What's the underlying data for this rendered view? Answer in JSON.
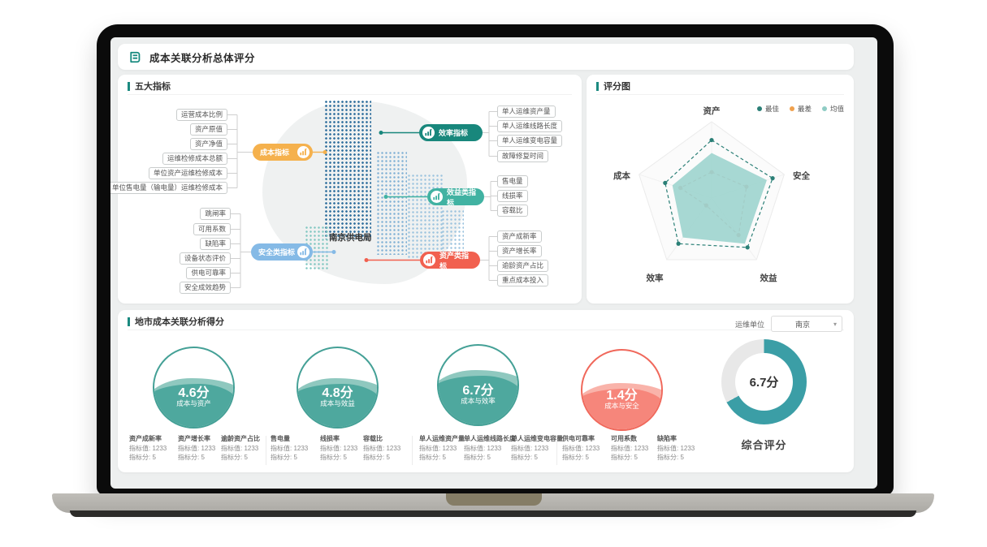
{
  "app": {
    "title": "成本关联分析总体评分"
  },
  "mindmap": {
    "section_title": "五大指标",
    "center_label": "南京供电局",
    "branches": {
      "cost": {
        "label": "成本指标",
        "color": "#F5B14D",
        "items": [
          "运营成本比例",
          "资产原值",
          "资产净值",
          "运维检修成本总额",
          "单位资产运维检修成本",
          "单位售电量（输电量）运维检修成本"
        ]
      },
      "safety": {
        "label": "安全类指标",
        "color": "#85BAE6",
        "items": [
          "跳闸率",
          "可用系数",
          "缺陷率",
          "设备状态评价",
          "供电可靠率",
          "安全成效趋势"
        ]
      },
      "efficiency": {
        "label": "效率指标",
        "color": "#18877C",
        "items": [
          "单人运维资产量",
          "单人运维线路长度",
          "单人运维变电容量",
          "故障修复时间"
        ]
      },
      "benefit": {
        "label": "效益类指标",
        "color": "#41B2A2",
        "items": [
          "售电量",
          "线损率",
          "容载比"
        ]
      },
      "asset": {
        "label": "资产类指标",
        "color": "#F1604F",
        "items": [
          "资产成新率",
          "资产增长率",
          "逾龄资产占比",
          "重点成本投入"
        ]
      }
    }
  },
  "score_chart": {
    "section_title": "评分图",
    "legend": [
      {
        "label": "最佳",
        "color": "#2a7f76"
      },
      {
        "label": "最差",
        "color": "#f0a14e"
      },
      {
        "label": "均值",
        "color": "#8fccc4"
      }
    ]
  },
  "chart_data": {
    "type": "radar",
    "title": "评分图",
    "categories": [
      "资产",
      "安全",
      "效益",
      "效率",
      "成本"
    ],
    "max": 10,
    "series": [
      {
        "name": "最佳",
        "values": [
          7.6,
          8.4,
          8.0,
          7.4,
          6.4
        ],
        "color": "#2a7f76",
        "style": "dashed-line-with-dots"
      },
      {
        "name": "最差",
        "values": [
          3.4,
          4.8,
          6.0,
          1.2,
          4.3
        ],
        "color": "#bc6a5e",
        "style": "dashed-line-with-dots"
      },
      {
        "name": "均值",
        "values": [
          5.9,
          7.6,
          7.4,
          6.4,
          5.4
        ],
        "color": "#a0d5cf",
        "style": "filled-area"
      }
    ],
    "legend_position": "top-right",
    "grid": "pentagon-outline"
  },
  "city": {
    "section_title": "地市成本关联分析得分",
    "unit_label": "运维单位",
    "unit_value": "南京",
    "gauges": [
      {
        "score": "4.6分",
        "label": "成本与资产",
        "theme": "teal",
        "fill_percent": 55
      },
      {
        "score": "4.8分",
        "label": "成本与效益",
        "theme": "teal",
        "fill_percent": 55
      },
      {
        "score": "6.7分",
        "label": "成本与效率",
        "theme": "teal",
        "fill_percent": 62
      },
      {
        "score": "1.4分",
        "label": "成本与安全",
        "theme": "red",
        "fill_percent": 52
      }
    ],
    "overall": {
      "score": "6.7分",
      "label": "综合评分",
      "percent": 67,
      "color": "#3B9EA6",
      "track_color": "#e8e8e8"
    },
    "metrics": [
      {
        "name": "资产成新率",
        "value": "指标值: 1233",
        "score": "指标分: 5"
      },
      {
        "name": "资产增长率",
        "value": "指标值: 1233",
        "score": "指标分: 5"
      },
      {
        "name": "逾龄资产占比",
        "value": "指标值: 1233",
        "score": "指标分: 5"
      },
      {
        "name": "售电量",
        "value": "指标值: 1233",
        "score": "指标分: 5"
      },
      {
        "name": "线损率",
        "value": "指标值: 1233",
        "score": "指标分: 5"
      },
      {
        "name": "容载比",
        "value": "指标值: 1233",
        "score": "指标分: 5"
      },
      {
        "name": "单人运维资产量",
        "value": "指标值: 1233",
        "score": "指标分: 5"
      },
      {
        "name": "单人运维线路长度",
        "value": "指标值: 1233",
        "score": "指标分: 5"
      },
      {
        "name": "单人运维变电容量",
        "value": "指标值: 1233",
        "score": "指标分: 5"
      },
      {
        "name": "供电可靠率",
        "value": "指标值: 1233",
        "score": "指标分: 5"
      },
      {
        "name": "可用系数",
        "value": "指标值: 1233",
        "score": "指标分: 5"
      },
      {
        "name": "缺陷率",
        "value": "指标值: 1233",
        "score": "指标分: 5"
      }
    ]
  }
}
